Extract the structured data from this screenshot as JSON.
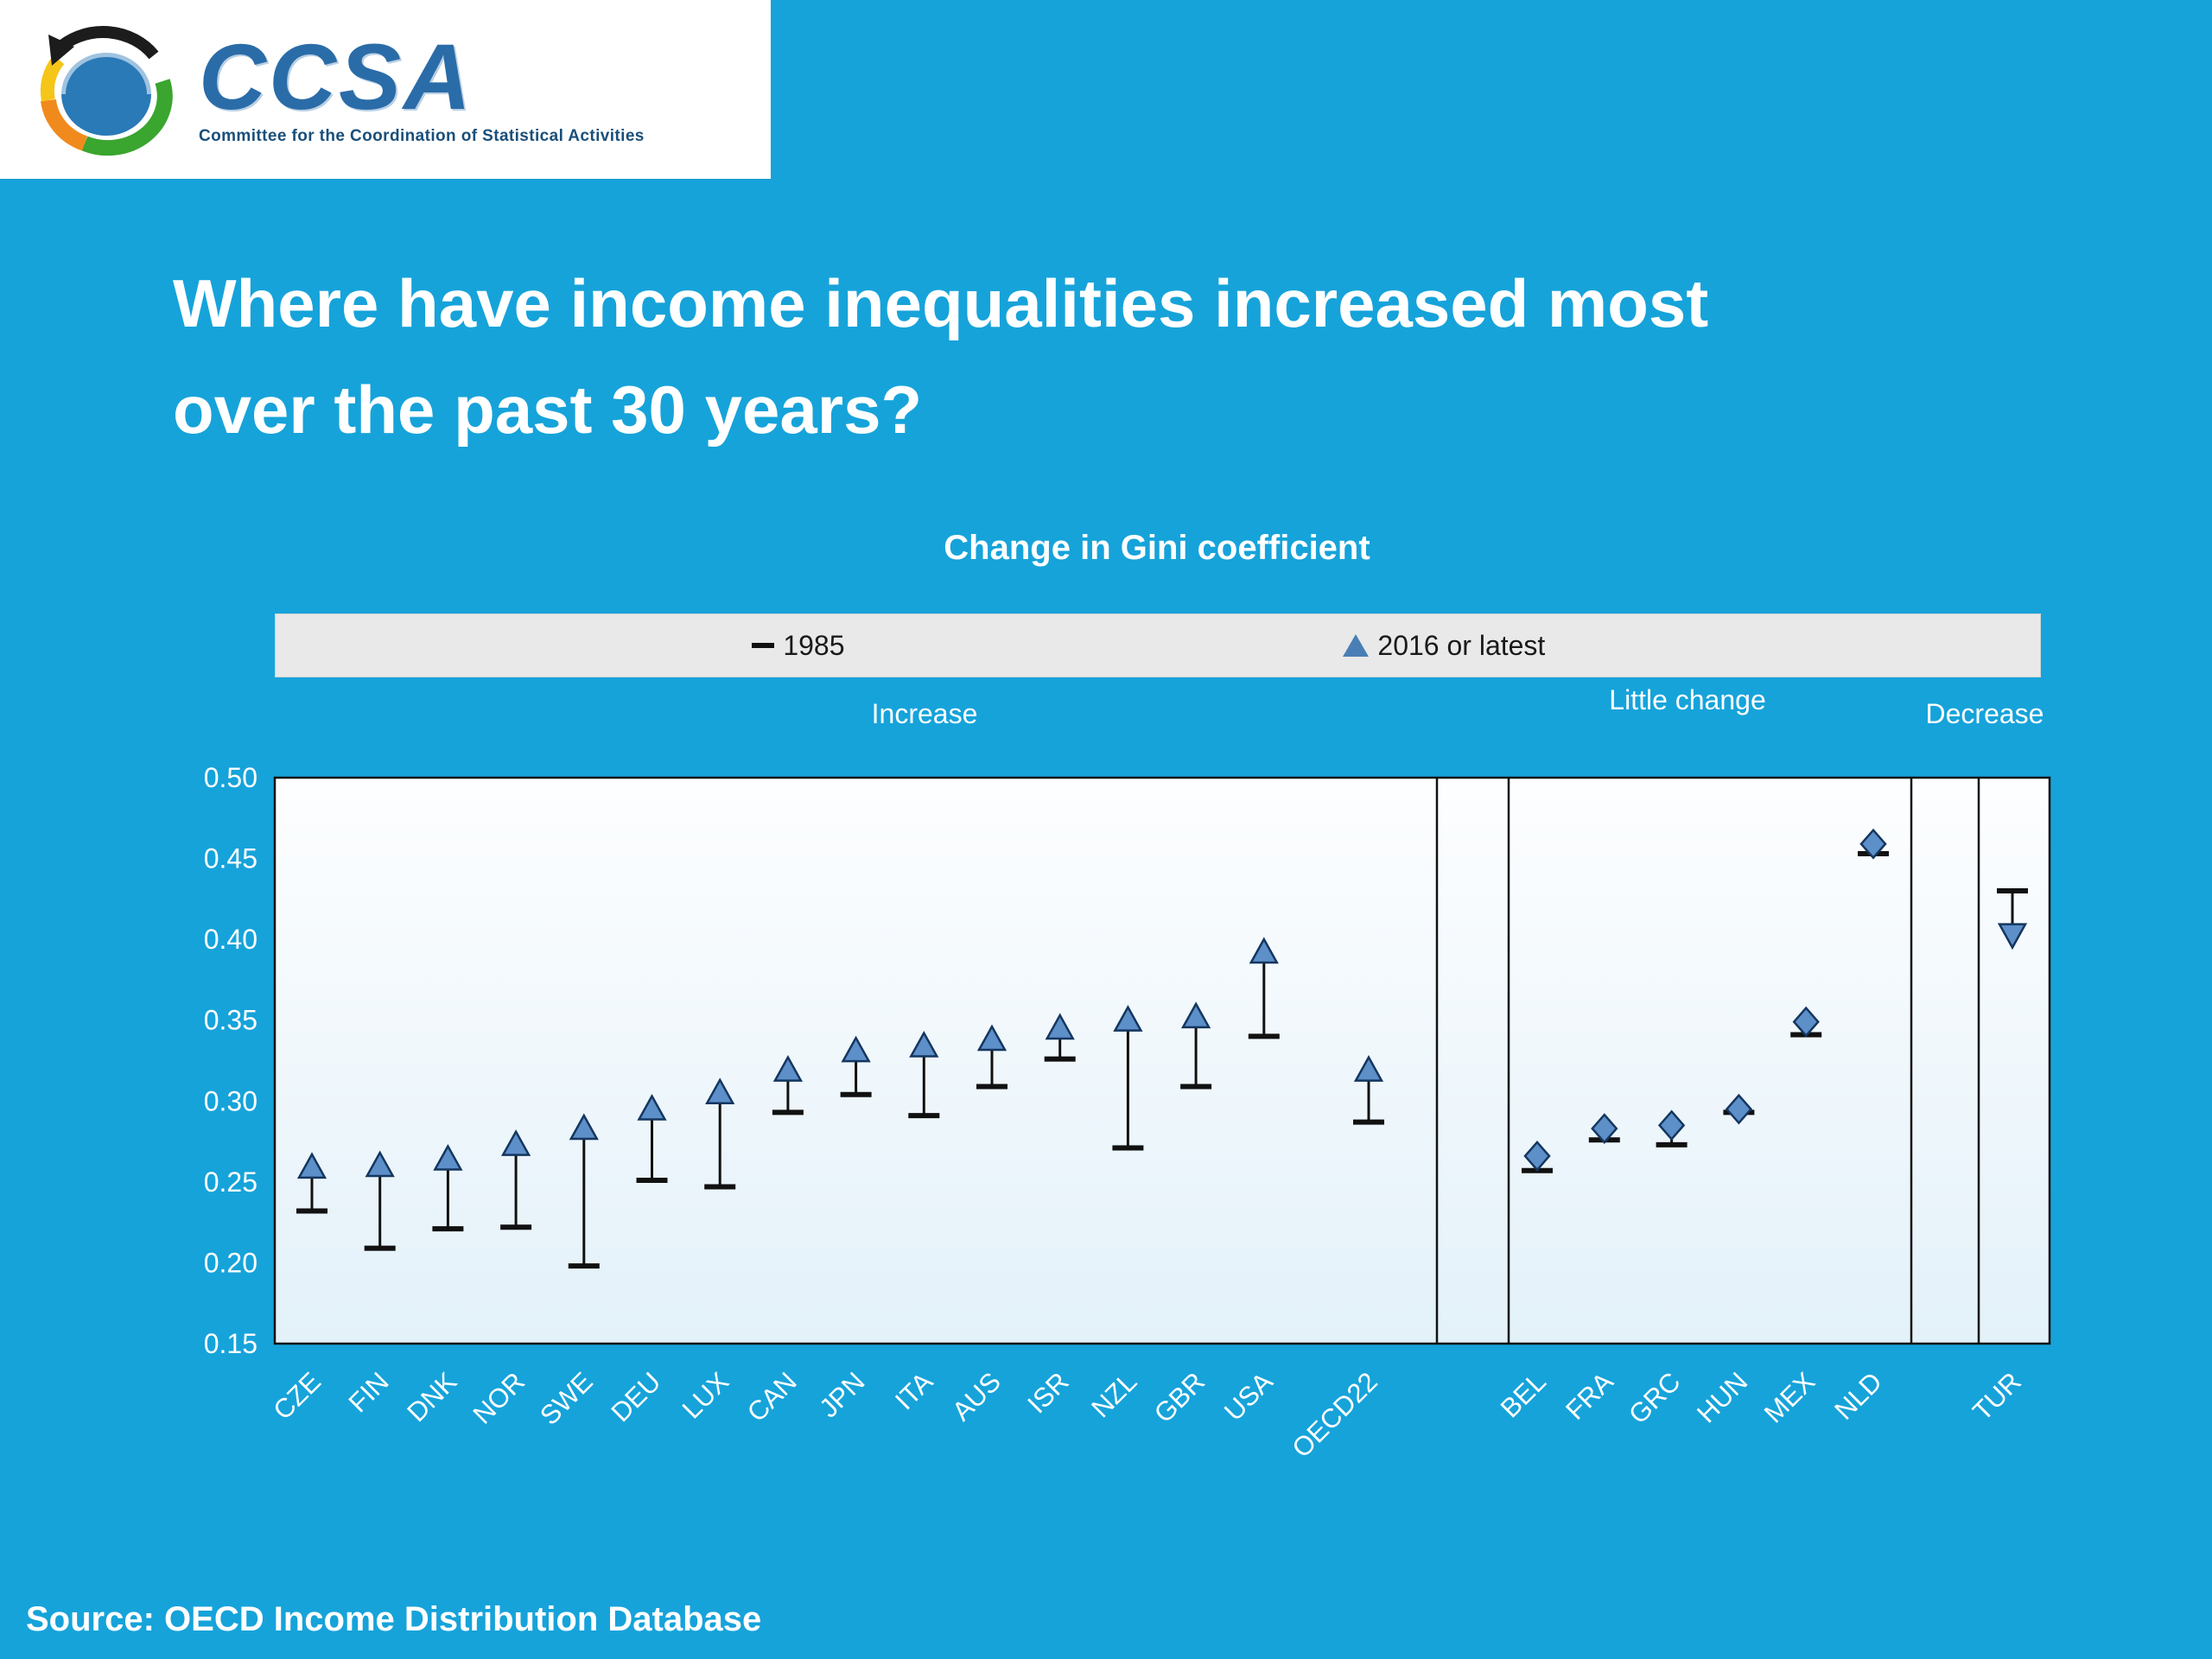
{
  "header": {
    "logo_text": "CCSA",
    "logo_tagline": "Committee for the Coordination of Statistical Activities"
  },
  "title": {
    "line1": "Where have income inequalities increased most",
    "line2": "over the past 30 years?"
  },
  "legend": {
    "item_1985": "1985",
    "item_2016": "2016 or latest"
  },
  "group_labels": {
    "increase": "Increase",
    "little_change": "Little change",
    "decrease": "Decrease"
  },
  "source": "Source: OECD Income Distribution Database",
  "colors": {
    "background": "#16a3da",
    "marker_fill": "#5d8fc9",
    "marker_stroke": "#14365f",
    "axis": "#111111"
  },
  "chart_data": {
    "type": "scatter",
    "title": "Change in Gini coefficient",
    "ylim": [
      0.15,
      0.5
    ],
    "ytick_step": 0.05,
    "legend": [
      "1985",
      "2016 or latest"
    ],
    "groups": [
      "Increase",
      "Little change",
      "Decrease"
    ],
    "marker_by_group": {
      "Increase": "triangle-up",
      "Little change": "diamond",
      "Decrease": "triangle-down"
    },
    "points": [
      {
        "country": "CZE",
        "group": "Increase",
        "v1985": 0.232,
        "v2016": 0.258
      },
      {
        "country": "FIN",
        "group": "Increase",
        "v1985": 0.209,
        "v2016": 0.259
      },
      {
        "country": "DNK",
        "group": "Increase",
        "v1985": 0.221,
        "v2016": 0.263
      },
      {
        "country": "NOR",
        "group": "Increase",
        "v1985": 0.222,
        "v2016": 0.272
      },
      {
        "country": "SWE",
        "group": "Increase",
        "v1985": 0.198,
        "v2016": 0.282
      },
      {
        "country": "DEU",
        "group": "Increase",
        "v1985": 0.251,
        "v2016": 0.294
      },
      {
        "country": "LUX",
        "group": "Increase",
        "v1985": 0.247,
        "v2016": 0.304
      },
      {
        "country": "CAN",
        "group": "Increase",
        "v1985": 0.293,
        "v2016": 0.318
      },
      {
        "country": "JPN",
        "group": "Increase",
        "v1985": 0.304,
        "v2016": 0.33
      },
      {
        "country": "ITA",
        "group": "Increase",
        "v1985": 0.291,
        "v2016": 0.333
      },
      {
        "country": "AUS",
        "group": "Increase",
        "v1985": 0.309,
        "v2016": 0.337
      },
      {
        "country": "ISR",
        "group": "Increase",
        "v1985": 0.326,
        "v2016": 0.344
      },
      {
        "country": "NZL",
        "group": "Increase",
        "v1985": 0.271,
        "v2016": 0.349
      },
      {
        "country": "GBR",
        "group": "Increase",
        "v1985": 0.309,
        "v2016": 0.351
      },
      {
        "country": "USA",
        "group": "Increase",
        "v1985": 0.34,
        "v2016": 0.391
      },
      {
        "country": "OECD22",
        "group": "Increase",
        "v1985": 0.287,
        "v2016": 0.318
      },
      {
        "country": "BEL",
        "group": "Little change",
        "v1985": 0.257,
        "v2016": 0.266
      },
      {
        "country": "FRA",
        "group": "Little change",
        "v1985": 0.276,
        "v2016": 0.283
      },
      {
        "country": "GRC",
        "group": "Little change",
        "v1985": 0.273,
        "v2016": 0.285
      },
      {
        "country": "HUN",
        "group": "Little change",
        "v1985": 0.293,
        "v2016": 0.295
      },
      {
        "country": "MEX",
        "group": "Little change",
        "v1985": 0.341,
        "v2016": 0.349
      },
      {
        "country": "NLD",
        "group": "Little change",
        "v1985": 0.453,
        "v2016": 0.459
      },
      {
        "country": "TUR",
        "group": "Decrease",
        "v1985": 0.43,
        "v2016": 0.404
      }
    ]
  }
}
